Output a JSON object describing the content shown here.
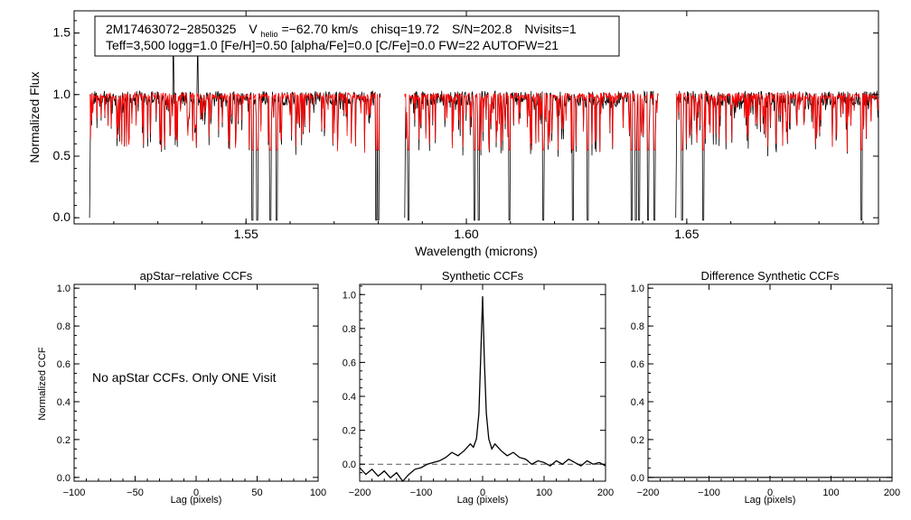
{
  "chart_data": [
    {
      "type": "line",
      "id": "spectrum",
      "info_line1": {
        "star": "2M17463072−2850325",
        "vhelio_label": "V",
        "vhelio_sub": "helio",
        "vhelio_value": "=−62.70 km/s",
        "chisq": "chisq=19.72",
        "snr": "S/N=202.8",
        "nvisits": "Nvisits=1"
      },
      "info_line2": "Teff=3,500 logg=1.0 [Fe/H]=0.50 [alpha/Fe]=0.0 [C/Fe]=0.0 FW=22 AUTOFW=21",
      "xlabel": "Wavelength (microns)",
      "ylabel": "Normalized Flux",
      "xlim": [
        1.511,
        1.6935
      ],
      "ylim": [
        -0.05,
        1.68
      ],
      "xticks": [
        1.55,
        1.6,
        1.65
      ],
      "xtick_labels": [
        "1.55",
        "1.60",
        "1.65"
      ],
      "yticks": [
        0.0,
        0.5,
        1.0,
        1.5
      ],
      "ytick_labels": [
        "0.0",
        "0.5",
        "1.0",
        "1.5"
      ],
      "chips": [
        [
          1.5145,
          1.5805
        ],
        [
          1.586,
          1.6435
        ],
        [
          1.6475,
          1.6935
        ]
      ],
      "deep_lines": [
        1.5515,
        1.5525,
        1.5555,
        1.557,
        1.5795,
        1.58,
        1.5868,
        1.6018,
        1.6028,
        1.6098,
        1.6175,
        1.6242,
        1.6275,
        1.6375,
        1.6385,
        1.6392,
        1.6412,
        1.6427,
        1.649,
        1.6538,
        1.6897
      ],
      "spikes": [
        1.5335,
        1.539
      ],
      "series": [
        {
          "name": "observed",
          "color": "#000000"
        },
        {
          "name": "model",
          "color": "#ff0000"
        }
      ]
    },
    {
      "type": "line",
      "id": "apstar",
      "title": "apStar−relative CCFs",
      "message": "No apStar CCFs.  Only ONE Visit",
      "xlabel": "Lag (pixels)",
      "ylabel": "Normalized CCF",
      "xlim": [
        -100,
        100
      ],
      "ylim": [
        -0.02,
        1.02
      ],
      "xticks": [
        -100,
        -50,
        0,
        50,
        100
      ],
      "xtick_labels": [
        "−100",
        "−50",
        "0",
        "50",
        "100"
      ],
      "yticks": [
        0.0,
        0.2,
        0.4,
        0.6,
        0.8,
        1.0
      ],
      "ytick_labels": [
        "0.0",
        "0.2",
        "0.4",
        "0.6",
        "0.8",
        "1.0"
      ]
    },
    {
      "type": "line",
      "id": "synthetic",
      "title": "Synthetic CCFs",
      "xlabel": "Lag (pixels)",
      "xlim": [
        -200,
        200
      ],
      "ylim": [
        -0.1,
        1.06
      ],
      "xticks": [
        -200,
        -100,
        0,
        100,
        200
      ],
      "xtick_labels": [
        "−200",
        "−100",
        "0",
        "100",
        "200"
      ],
      "yticks": [
        0.0,
        0.2,
        0.4,
        0.6,
        0.8,
        1.0
      ],
      "ytick_labels": [
        "0.0",
        "0.2",
        "0.4",
        "0.6",
        "0.8",
        "1.0"
      ],
      "reference_line": 0.0,
      "ccf": {
        "x": [
          -200,
          -190,
          -180,
          -170,
          -160,
          -150,
          -140,
          -130,
          -120,
          -110,
          -100,
          -90,
          -80,
          -70,
          -60,
          -50,
          -40,
          -30,
          -20,
          -15,
          -10,
          -6,
          -3,
          0,
          3,
          6,
          10,
          15,
          20,
          30,
          40,
          50,
          60,
          70,
          80,
          90,
          100,
          110,
          120,
          130,
          140,
          150,
          160,
          170,
          180,
          190,
          200
        ],
        "y": [
          -0.02,
          -0.06,
          -0.03,
          -0.07,
          -0.04,
          -0.08,
          -0.05,
          -0.1,
          -0.06,
          -0.03,
          -0.02,
          0.0,
          0.01,
          0.02,
          0.04,
          0.07,
          0.05,
          0.08,
          0.12,
          0.1,
          0.15,
          0.3,
          0.65,
          0.99,
          0.6,
          0.3,
          0.15,
          0.09,
          0.12,
          0.08,
          0.05,
          0.07,
          0.04,
          0.03,
          0.0,
          0.02,
          0.01,
          -0.01,
          0.02,
          0.0,
          0.03,
          0.01,
          -0.01,
          0.02,
          0.0,
          0.01,
          -0.01
        ]
      }
    },
    {
      "type": "line",
      "id": "difference",
      "title": "Difference Synthetic CCFs",
      "xlabel": "Lag (pixels)",
      "xlim": [
        -200,
        200
      ],
      "ylim": [
        -0.02,
        1.02
      ],
      "xticks": [
        -200,
        -100,
        0,
        100,
        200
      ],
      "xtick_labels": [
        "−200",
        "−100",
        "0",
        "100",
        "200"
      ],
      "yticks": [
        0.0,
        0.2,
        0.4,
        0.6,
        0.8,
        1.0
      ],
      "ytick_labels": [
        "0.0",
        "0.2",
        "0.4",
        "0.6",
        "0.8",
        "1.0"
      ],
      "baseline": 0.0
    }
  ]
}
